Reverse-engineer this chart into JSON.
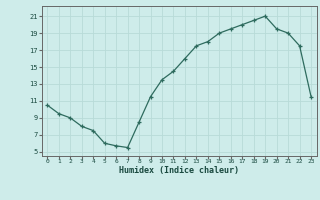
{
  "x": [
    0,
    1,
    2,
    3,
    4,
    5,
    6,
    7,
    8,
    9,
    10,
    11,
    12,
    13,
    14,
    15,
    16,
    17,
    18,
    19,
    20,
    21,
    22,
    23
  ],
  "y": [
    10.5,
    9.5,
    9.0,
    8.0,
    7.5,
    6.0,
    5.7,
    5.5,
    8.5,
    11.5,
    13.5,
    14.5,
    16.0,
    17.5,
    18.0,
    19.0,
    19.5,
    20.0,
    20.5,
    21.0,
    19.5,
    19.0,
    17.5,
    11.5
  ],
  "xlabel": "Humidex (Indice chaleur)",
  "xlim": [
    -0.5,
    23.5
  ],
  "ylim": [
    4.5,
    22.2
  ],
  "yticks": [
    5,
    7,
    9,
    11,
    13,
    15,
    17,
    19,
    21
  ],
  "xticks": [
    0,
    1,
    2,
    3,
    4,
    5,
    6,
    7,
    8,
    9,
    10,
    11,
    12,
    13,
    14,
    15,
    16,
    17,
    18,
    19,
    20,
    21,
    22,
    23
  ],
  "line_color": "#2e6b5e",
  "bg_color": "#ceecea",
  "grid_color": "#b8dbd8",
  "border_color": "#666666",
  "font_color": "#1a4a40"
}
